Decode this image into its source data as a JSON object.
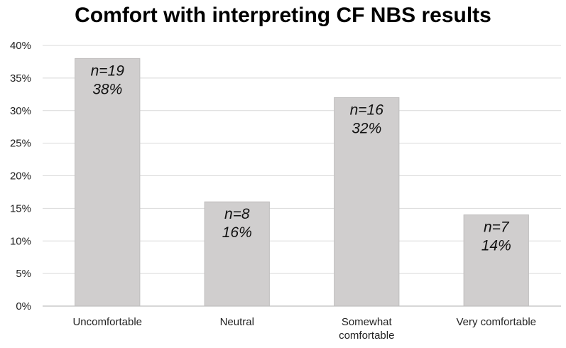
{
  "chart_data": {
    "type": "bar",
    "title": "Comfort with interpreting CF NBS results",
    "xlabel": "",
    "ylabel": "",
    "categories": [
      "Uncomfortable",
      "Neutral",
      "Somewhat comfortable",
      "Very comfortable"
    ],
    "category_lines": [
      [
        "Uncomfortable"
      ],
      [
        "Neutral"
      ],
      [
        "Somewhat",
        "comfortable"
      ],
      [
        "Very comfortable"
      ]
    ],
    "values": [
      38,
      16,
      32,
      14
    ],
    "counts": [
      19,
      8,
      16,
      7
    ],
    "data_labels": [
      [
        "n=19",
        "38%"
      ],
      [
        "n=8",
        "16%"
      ],
      [
        "n=16",
        "32%"
      ],
      [
        "n=7",
        "14%"
      ]
    ],
    "y_ticks": [
      0,
      5,
      10,
      15,
      20,
      25,
      30,
      35,
      40
    ],
    "y_tick_labels": [
      "0%",
      "5%",
      "10%",
      "15%",
      "20%",
      "25%",
      "30%",
      "35%",
      "40%"
    ],
    "ylim": [
      0,
      40
    ],
    "grid": true,
    "legend": "none",
    "colors": {
      "bar_fill": "#d0cece",
      "bar_edge": "#bfbdbd",
      "gridline": "#d9d9d9",
      "axis_line": "#bfbfbf"
    }
  }
}
